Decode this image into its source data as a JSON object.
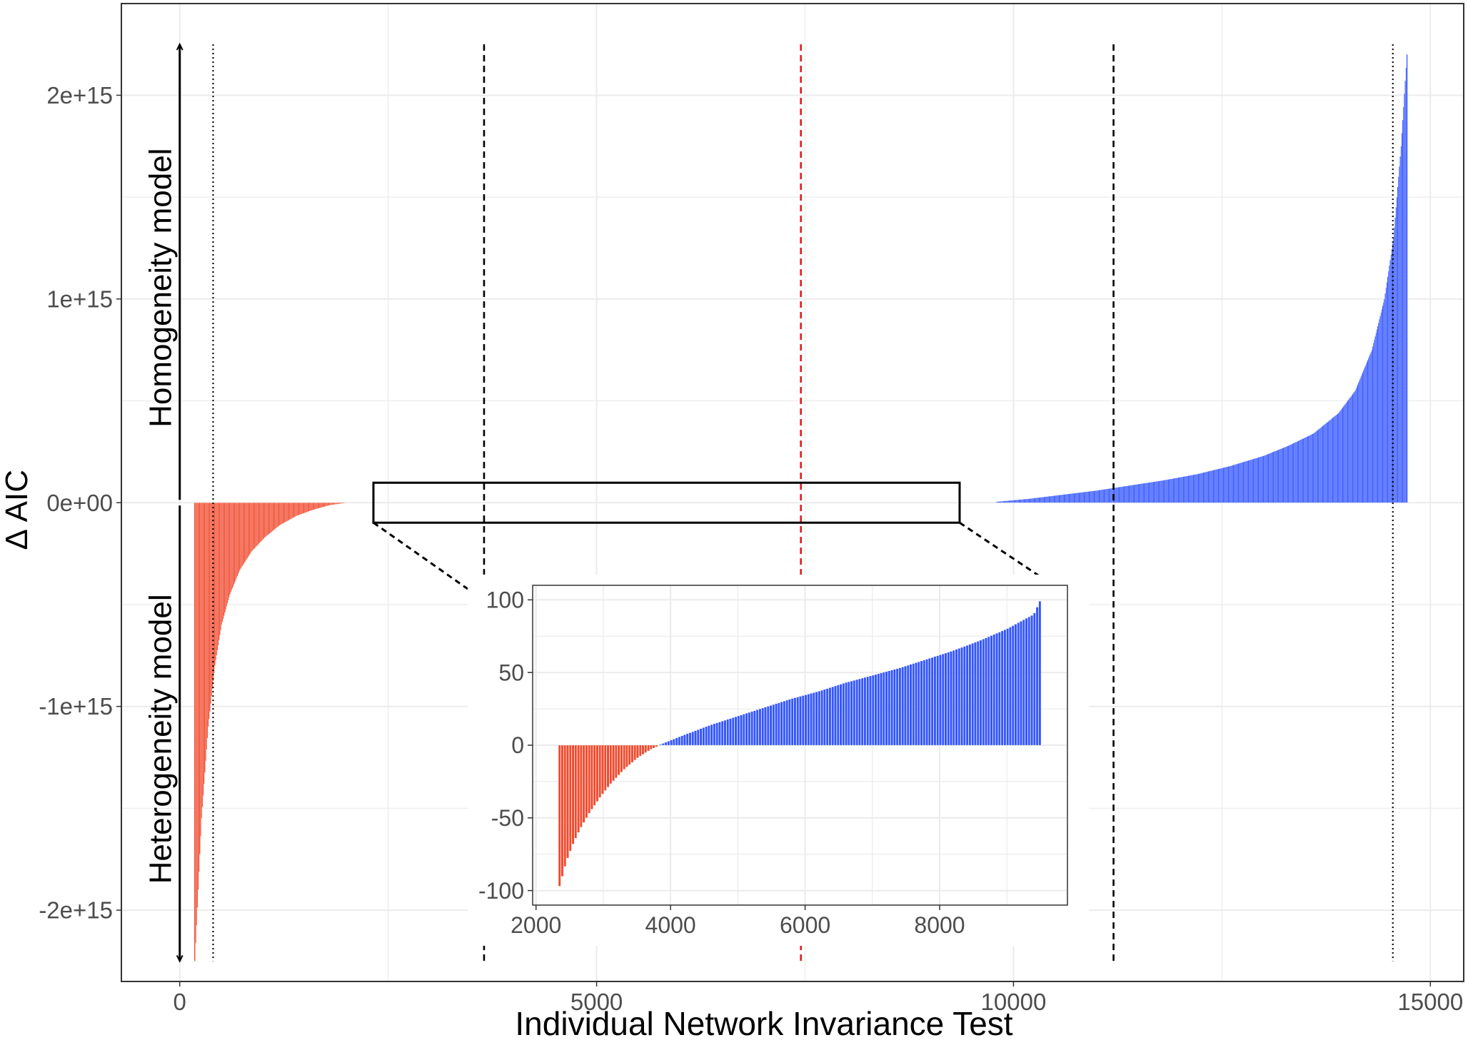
{
  "colors": {
    "heterogeneity": "#F14A2E",
    "homogeneity": "#3355FF",
    "panel_border": "#333333",
    "gridline": "#EBEBEB",
    "tick_label": "#4D4D4D",
    "median_line": "#E41A1C",
    "reference_line": "#000000"
  },
  "chart_data": [
    {
      "type": "bar",
      "xlabel": "Individual Network Invariance Test",
      "ylabel": "Δ AIC",
      "xlim": [
        -700,
        15400
      ],
      "ylim": [
        -2350000000000000.0,
        2450000000000000.0
      ],
      "x_ticks": [
        0,
        5000,
        10000,
        15000
      ],
      "x_tick_labels": [
        "0",
        "5000",
        "10000",
        "15000"
      ],
      "y_ticks": [
        -2000000000000000.0,
        -1000000000000000.0,
        0,
        1000000000000000.0,
        2000000000000000.0
      ],
      "y_tick_labels": [
        "-2e+15",
        "-1e+15",
        "0e+00",
        "1e+15",
        "2e+15"
      ],
      "grid": true,
      "series": [
        {
          "name": "Heterogeneity model",
          "color": "#F14A2E",
          "x": [
            180,
            260,
            340,
            420,
            500,
            600,
            720,
            860,
            1020,
            1200,
            1400,
            1600,
            1800,
            1980
          ],
          "values": [
            -2250000000000000.0,
            -1550000000000000.0,
            -1100000000000000.0,
            -800000000000000.0,
            -600000000000000.0,
            -450000000000000.0,
            -330000000000000.0,
            -240000000000000.0,
            -170000000000000.0,
            -110000000000000.0,
            -65000000000000.0,
            -35000000000000.0,
            -12000000000000.0,
            -2000000000000.0
          ]
        },
        {
          "name": "Homogeneity model",
          "color": "#3355FF",
          "x": [
            9800,
            10200,
            10600,
            11000,
            11400,
            11800,
            12200,
            12600,
            13000,
            13300,
            13600,
            13900,
            14100,
            14300,
            14450,
            14560,
            14650,
            14720
          ],
          "values": [
            5000000000000.0,
            20000000000000.0,
            40000000000000.0,
            60000000000000.0,
            85000000000000.0,
            110000000000000.0,
            140000000000000.0,
            180000000000000.0,
            230000000000000.0,
            280000000000000.0,
            340000000000000.0,
            440000000000000.0,
            550000000000000.0,
            750000000000000.0,
            1000000000000000.0,
            1300000000000000.0,
            1750000000000000.0,
            2200000000000000.0
          ]
        }
      ],
      "annotations": {
        "upper_arrow_label": "Homogeneity model",
        "lower_arrow_label": "Heterogeneity model"
      },
      "reference_lines": {
        "dotted": [
          400,
          14550
        ],
        "dashed": [
          3650,
          11200
        ],
        "dashed_red": [
          7450
        ]
      }
    },
    {
      "type": "bar",
      "xlabel": "",
      "ylabel": "",
      "xlim": [
        1950,
        9900
      ],
      "ylim": [
        -110,
        110
      ],
      "x_ticks": [
        2000,
        4000,
        6000,
        8000
      ],
      "x_tick_labels": [
        "2000",
        "4000",
        "6000",
        "8000"
      ],
      "y_ticks": [
        -100,
        -50,
        0,
        50,
        100
      ],
      "y_tick_labels": [
        "-100",
        "-50",
        "0",
        "50",
        "100"
      ],
      "grid": true,
      "series": [
        {
          "name": "Heterogeneity model",
          "color": "#F14A2E",
          "x": [
            2350,
            2450,
            2550,
            2650,
            2800,
            2950,
            3100,
            3300,
            3500,
            3700,
            3820
          ],
          "values": [
            -97,
            -80,
            -68,
            -58,
            -46,
            -36,
            -27,
            -17,
            -9,
            -3,
            -0.5
          ]
        },
        {
          "name": "Homogeneity model",
          "color": "#3355FF",
          "x": [
            3850,
            4200,
            4600,
            5000,
            5400,
            5800,
            6200,
            6600,
            7000,
            7400,
            7800,
            8200,
            8600,
            9000,
            9400,
            9500
          ],
          "values": [
            0.5,
            7,
            14,
            20,
            26,
            32,
            37,
            43,
            48,
            53,
            59,
            65,
            72,
            80,
            90,
            100
          ]
        }
      ]
    }
  ]
}
